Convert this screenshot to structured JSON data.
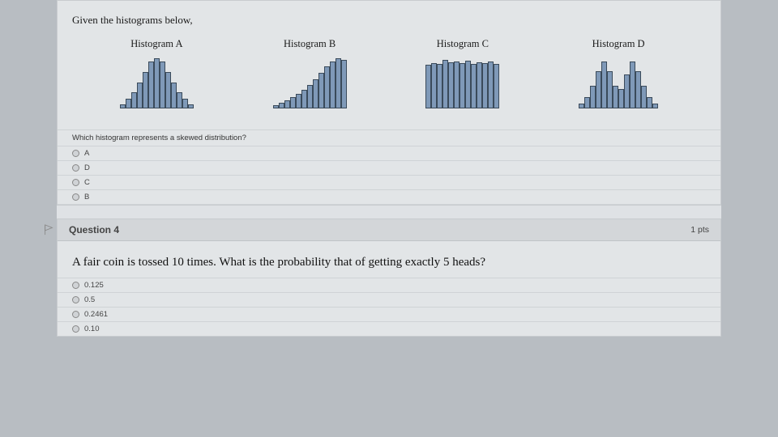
{
  "q3": {
    "prompt": "Given the histograms below,",
    "histograms": [
      {
        "title": "Histogram A",
        "bars": [
          5,
          12,
          20,
          32,
          45,
          58,
          62,
          58,
          45,
          32,
          20,
          12,
          5
        ]
      },
      {
        "title": "Histogram B",
        "bars": [
          4,
          7,
          10,
          14,
          18,
          23,
          29,
          36,
          44,
          52,
          58,
          62,
          60
        ]
      },
      {
        "title": "Histogram C",
        "bars": [
          54,
          56,
          55,
          60,
          57,
          58,
          56,
          59,
          55,
          57,
          56,
          58,
          55
        ]
      },
      {
        "title": "Histogram D",
        "bars": [
          6,
          14,
          28,
          46,
          58,
          46,
          28,
          24,
          42,
          58,
          46,
          28,
          14,
          6
        ]
      }
    ],
    "bar_color": "#7f99b8",
    "bar_border": "#3a4a5a",
    "sub_question": "Which histogram represents a skewed distribution?",
    "options": [
      "A",
      "D",
      "C",
      "B"
    ]
  },
  "q4": {
    "header_title": "Question 4",
    "points": "1 pts",
    "prompt": "A fair coin is tossed 10 times. What is the probability that of getting exactly 5 heads?",
    "options": [
      "0.125",
      "0.5",
      "0.2461",
      "0.10"
    ]
  }
}
